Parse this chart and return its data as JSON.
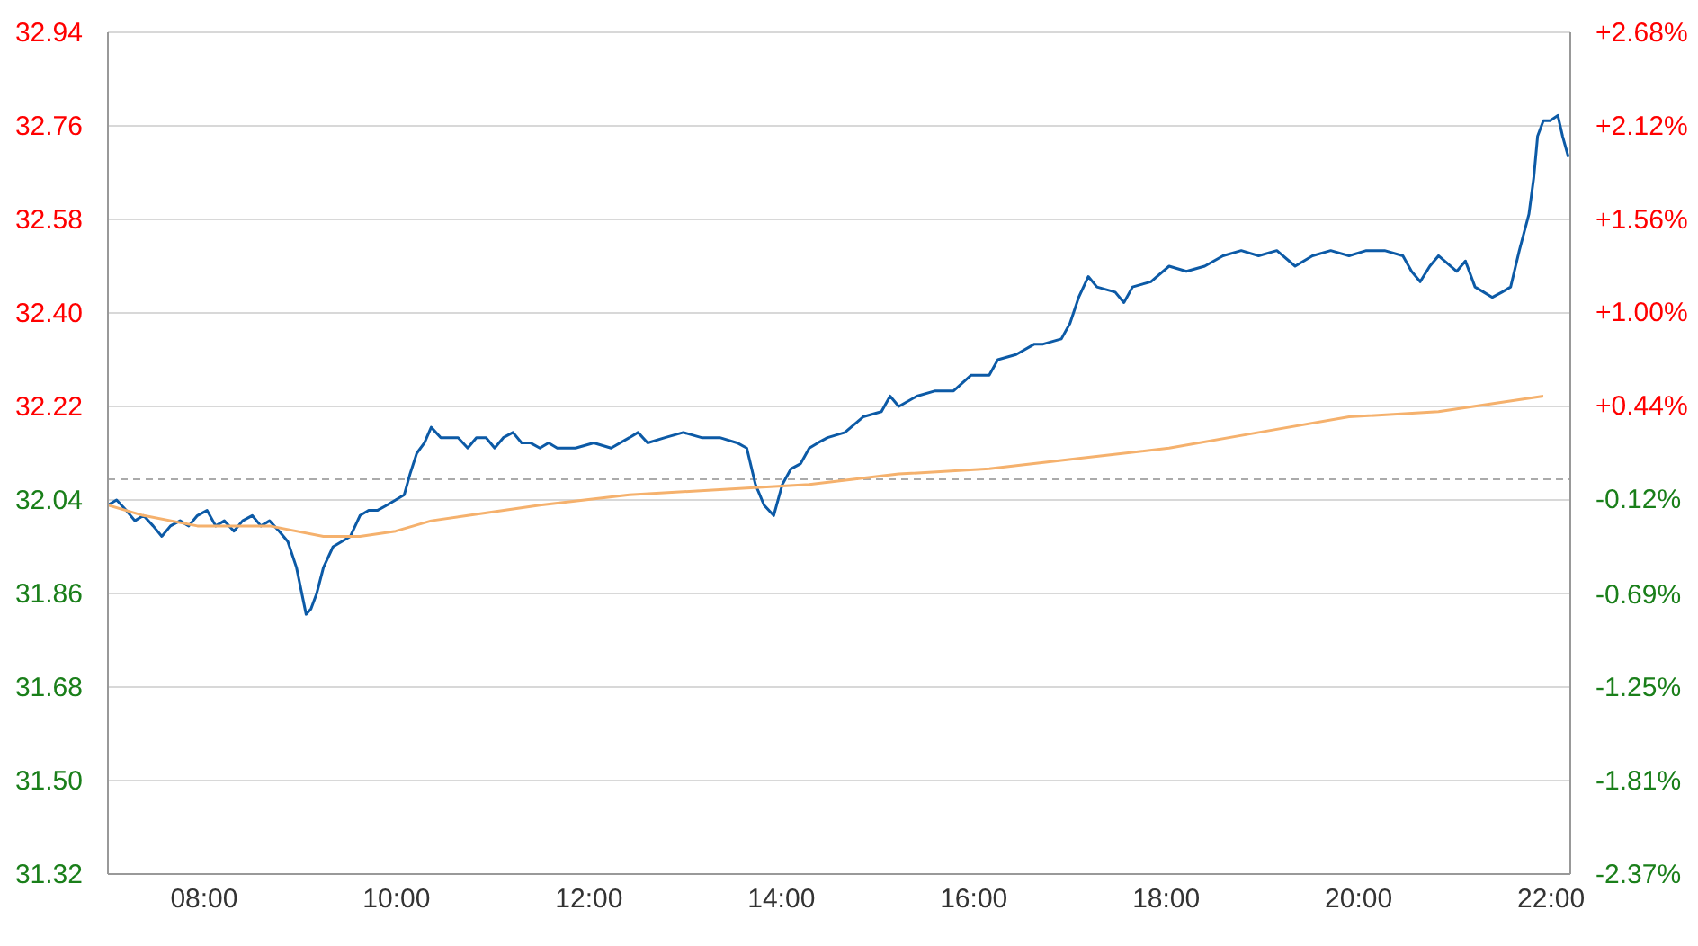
{
  "chart_data": {
    "type": "line",
    "xlim": [
      7,
      22.2
    ],
    "xticks": [
      {
        "value": 8,
        "label": "08:00"
      },
      {
        "value": 10,
        "label": "10:00"
      },
      {
        "value": 12,
        "label": "12:00"
      },
      {
        "value": 14,
        "label": "14:00"
      },
      {
        "value": 16,
        "label": "16:00"
      },
      {
        "value": 18,
        "label": "18:00"
      },
      {
        "value": 20,
        "label": "20:00"
      },
      {
        "value": 22,
        "label": "22:00"
      }
    ],
    "ylim": [
      31.32,
      32.94
    ],
    "yticks": [
      {
        "value": 31.32,
        "label": "31.32"
      },
      {
        "value": 31.5,
        "label": "31.50"
      },
      {
        "value": 31.68,
        "label": "31.68"
      },
      {
        "value": 31.86,
        "label": "31.86"
      },
      {
        "value": 32.04,
        "label": "32.04"
      },
      {
        "value": 32.22,
        "label": "32.22"
      },
      {
        "value": 32.4,
        "label": "32.40"
      },
      {
        "value": 32.58,
        "label": "32.58"
      },
      {
        "value": 32.76,
        "label": "32.76"
      },
      {
        "value": 32.94,
        "label": "32.94"
      }
    ],
    "y2lim": [
      -2.37,
      2.68
    ],
    "y2ticks": [
      {
        "value": -2.37,
        "label": "-2.37%"
      },
      {
        "value": -1.81,
        "label": "-1.81%"
      },
      {
        "value": -1.25,
        "label": "-1.25%"
      },
      {
        "value": -0.69,
        "label": "-0.69%"
      },
      {
        "value": -0.12,
        "label": "-0.12%"
      },
      {
        "value": 0.44,
        "label": "+0.44%"
      },
      {
        "value": 1.0,
        "label": "+1.00%"
      },
      {
        "value": 1.56,
        "label": "+1.56%"
      },
      {
        "value": 2.12,
        "label": "+2.12%"
      },
      {
        "value": 2.68,
        "label": "+2.68%"
      }
    ],
    "grid": "y",
    "marker": "none",
    "line_style": "solid",
    "ref_lines": [
      {
        "axis": "y",
        "value": 32.08,
        "color": "#aaaaaa",
        "line_style": "dashed"
      }
    ],
    "series": [
      {
        "color": "#0c5aa6",
        "x": [
          7.0,
          7.09,
          7.19,
          7.28,
          7.37,
          7.47,
          7.56,
          7.65,
          7.75,
          7.84,
          7.93,
          8.03,
          8.12,
          8.21,
          8.31,
          8.4,
          8.5,
          8.59,
          8.68,
          8.78,
          8.87,
          8.96,
          9.06,
          9.11,
          9.17,
          9.24,
          9.34,
          9.43,
          9.52,
          9.62,
          9.71,
          9.8,
          9.9,
          9.99,
          10.08,
          10.14,
          10.21,
          10.29,
          10.36,
          10.46,
          10.55,
          10.64,
          10.74,
          10.83,
          10.93,
          11.02,
          11.11,
          11.21,
          11.3,
          11.39,
          11.49,
          11.58,
          11.67,
          11.77,
          11.86,
          12.05,
          12.23,
          12.42,
          12.51,
          12.61,
          12.79,
          12.98,
          13.17,
          13.36,
          13.54,
          13.64,
          13.73,
          13.82,
          13.92,
          14.01,
          14.1,
          14.2,
          14.29,
          14.38,
          14.48,
          14.66,
          14.85,
          15.04,
          15.13,
          15.22,
          15.41,
          15.6,
          15.79,
          15.97,
          16.16,
          16.25,
          16.44,
          16.63,
          16.72,
          16.91,
          17.0,
          17.09,
          17.19,
          17.28,
          17.47,
          17.56,
          17.65,
          17.84,
          18.03,
          18.21,
          18.4,
          18.59,
          18.78,
          18.96,
          19.15,
          19.34,
          19.52,
          19.71,
          19.9,
          20.08,
          20.27,
          20.46,
          20.55,
          20.64,
          20.74,
          20.83,
          21.02,
          21.11,
          21.21,
          21.3,
          21.39,
          21.49,
          21.58,
          21.67,
          21.77,
          21.82,
          21.86,
          21.92,
          21.99,
          22.07,
          22.12,
          22.18
        ],
        "values": [
          32.03,
          32.04,
          32.02,
          32.0,
          32.01,
          31.99,
          31.97,
          31.99,
          32.0,
          31.99,
          32.01,
          32.02,
          31.99,
          32.0,
          31.98,
          32.0,
          32.01,
          31.99,
          32.0,
          31.98,
          31.96,
          31.91,
          31.82,
          31.83,
          31.86,
          31.91,
          31.95,
          31.96,
          31.97,
          32.01,
          32.02,
          32.02,
          32.03,
          32.04,
          32.05,
          32.09,
          32.13,
          32.15,
          32.18,
          32.16,
          32.16,
          32.16,
          32.14,
          32.16,
          32.16,
          32.14,
          32.16,
          32.17,
          32.15,
          32.15,
          32.14,
          32.15,
          32.14,
          32.14,
          32.14,
          32.15,
          32.14,
          32.16,
          32.17,
          32.15,
          32.16,
          32.17,
          32.16,
          32.16,
          32.15,
          32.14,
          32.07,
          32.03,
          32.01,
          32.07,
          32.1,
          32.11,
          32.14,
          32.15,
          32.16,
          32.17,
          32.2,
          32.21,
          32.24,
          32.22,
          32.24,
          32.25,
          32.25,
          32.28,
          32.28,
          32.31,
          32.32,
          32.34,
          32.34,
          32.35,
          32.38,
          32.43,
          32.47,
          32.45,
          32.44,
          32.42,
          32.45,
          32.46,
          32.49,
          32.48,
          32.49,
          32.51,
          32.52,
          32.51,
          32.52,
          32.49,
          32.51,
          32.52,
          32.51,
          32.52,
          32.52,
          32.51,
          32.48,
          32.46,
          32.49,
          32.51,
          32.48,
          32.5,
          32.45,
          32.44,
          32.43,
          32.44,
          32.45,
          32.52,
          32.59,
          32.66,
          32.74,
          32.77,
          32.77,
          32.78,
          32.74,
          32.7
        ]
      },
      {
        "color": "#f5b16d",
        "x": [
          7.0,
          7.37,
          7.93,
          8.68,
          9.24,
          9.62,
          9.99,
          10.36,
          10.74,
          11.49,
          12.42,
          13.36,
          14.29,
          15.22,
          16.16,
          17.09,
          18.03,
          18.96,
          19.9,
          20.83,
          21.92
        ],
        "values": [
          32.03,
          32.01,
          31.99,
          31.99,
          31.97,
          31.97,
          31.98,
          32.0,
          32.01,
          32.03,
          32.05,
          32.06,
          32.07,
          32.09,
          32.1,
          32.12,
          32.14,
          32.17,
          32.2,
          32.21,
          32.24
        ]
      }
    ]
  }
}
